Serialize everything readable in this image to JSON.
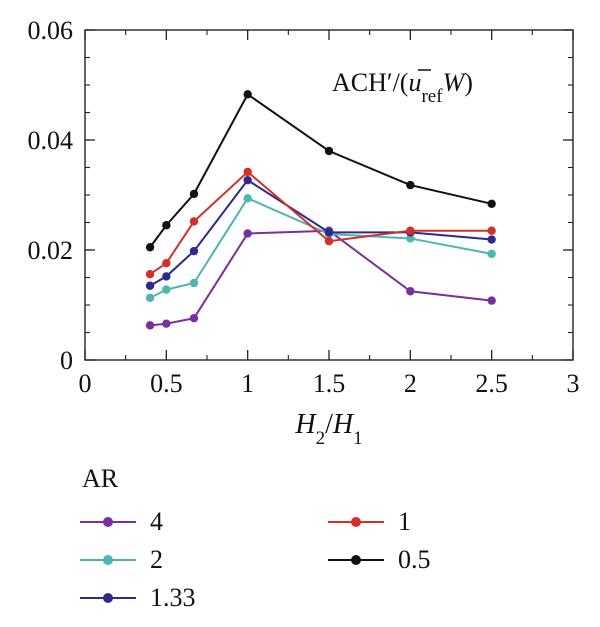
{
  "chart_data": {
    "type": "line",
    "x": [
      0.4,
      0.5,
      0.67,
      1.0,
      1.5,
      2.0,
      2.5
    ],
    "xlim": [
      0,
      3
    ],
    "ylim": [
      0,
      0.06
    ],
    "xticks": [
      0,
      0.5,
      1,
      1.5,
      2,
      2.5,
      3
    ],
    "xtick_labels": [
      "0",
      "0.5",
      "1",
      "1.5",
      "2",
      "2.5",
      "3"
    ],
    "yticks": [
      0,
      0.02,
      0.04,
      0.06
    ],
    "ytick_labels": [
      "0",
      "0.02",
      "0.04",
      "0.06"
    ],
    "xlabel": {
      "main1": "H",
      "sub1": "2",
      "sep": "/",
      "main2": "H",
      "sub2": "1"
    },
    "annotation": {
      "pre": "ACH′/(",
      "u": "u",
      "sub": "ref",
      "w": "W",
      "close": ")"
    },
    "legend_title": "AR",
    "legend_position": "bottom",
    "grid": false,
    "series": [
      {
        "name": "4",
        "color": "#7a2f9a",
        "values": [
          0.0063,
          0.0066,
          0.0076,
          0.023,
          0.0235,
          0.0125,
          0.0108
        ]
      },
      {
        "name": "2",
        "color": "#4db6b0",
        "values": [
          0.0113,
          0.0128,
          0.014,
          0.0294,
          0.0229,
          0.0221,
          0.0193
        ]
      },
      {
        "name": "1.33",
        "color": "#2e2a8c",
        "values": [
          0.0135,
          0.0152,
          0.0198,
          0.0327,
          0.0232,
          0.0232,
          0.0219
        ]
      },
      {
        "name": "1",
        "color": "#d3302a",
        "values": [
          0.0156,
          0.0176,
          0.0252,
          0.0342,
          0.0216,
          0.0235,
          0.0235
        ]
      },
      {
        "name": "0.5",
        "color": "#111111",
        "values": [
          0.0205,
          0.0245,
          0.0302,
          0.0483,
          0.038,
          0.0318,
          0.0284
        ]
      }
    ]
  }
}
